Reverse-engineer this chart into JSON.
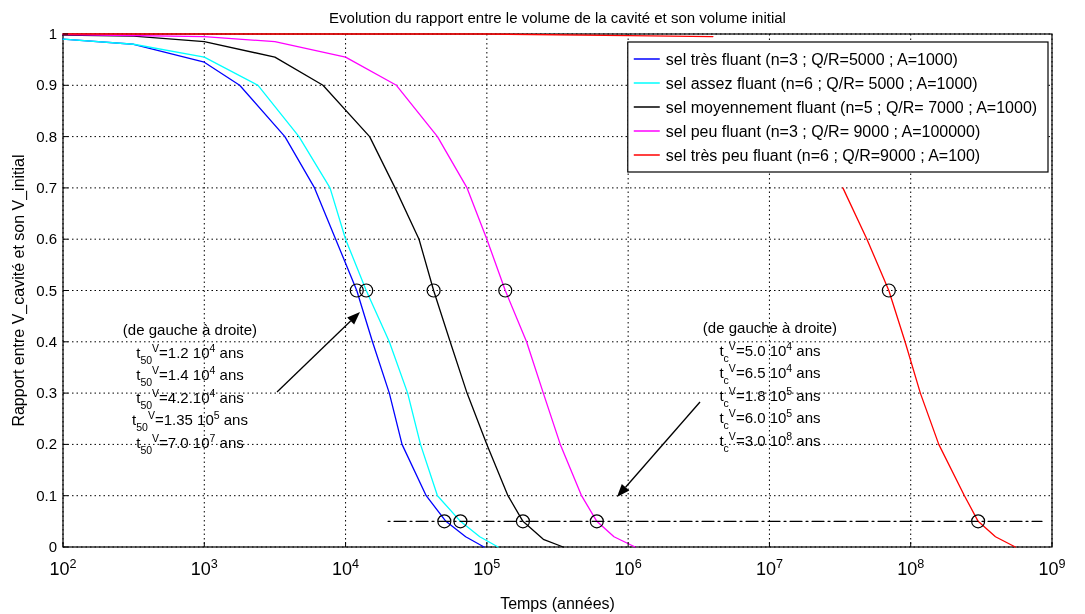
{
  "chart_data": {
    "type": "line",
    "title": "Evolution du rapport entre le volume de la cavité et son volume initial",
    "xlabel": "Temps (années)",
    "ylabel": "Rapport entre V_cavité et son V_initial",
    "log": "x",
    "xlim": [
      100,
      1000000000
    ],
    "xticks": [
      {
        "value": 100,
        "label": "10$^{2}$"
      },
      {
        "value": 1000,
        "label": "10$^{3}$"
      },
      {
        "value": 10000,
        "label": "10$^{4}$"
      },
      {
        "value": 100000,
        "label": "10$^{5}$"
      },
      {
        "value": 1000000,
        "label": "10$^{6}$"
      },
      {
        "value": 10000000,
        "label": "10$^{7}$"
      },
      {
        "value": 100000000,
        "label": "10$^{8}$"
      },
      {
        "value": 1000000000,
        "label": "10$^{9}$"
      }
    ],
    "ylim": [
      0,
      1
    ],
    "yticks": [
      0,
      0.1,
      0.2,
      0.3,
      0.4,
      0.5,
      0.6,
      0.7,
      0.8,
      0.9,
      1
    ],
    "grid": true,
    "legend": "top right",
    "series": [
      {
        "name": "sel très fluant (n=3 ; Q/R=5000 ; A=1000)",
        "color": "#0000ff",
        "x": [
          100,
          316,
          1000,
          1780,
          3720,
          6030,
          8510,
          12000,
          15500,
          20400,
          25100,
          37200,
          51300,
          70800,
          95500
        ],
        "values": [
          0.99,
          0.98,
          0.945,
          0.9,
          0.8,
          0.7,
          0.6,
          0.5,
          0.4,
          0.3,
          0.2,
          0.1,
          0.05,
          0.02,
          0
        ]
      },
      {
        "name": "sel assez fluant (n=6 ; Q/R= 5000 ; A=1000)",
        "color": "#00ffff",
        "x": [
          100,
          316,
          1000,
          2400,
          4680,
          7760,
          10000,
          14000,
          20400,
          27500,
          33900,
          44700,
          65000,
          89100,
          120000
        ],
        "values": [
          0.99,
          0.98,
          0.955,
          0.9,
          0.8,
          0.7,
          0.6,
          0.5,
          0.4,
          0.3,
          0.2,
          0.1,
          0.05,
          0.02,
          0
        ]
      },
      {
        "name": "sel moyennement fluant (n=5 ; Q/R= 7000 ; A=1000)",
        "color": "#000000",
        "x": [
          100,
          316,
          1000,
          3160,
          6920,
          14800,
          22400,
          33100,
          42000,
          55000,
          72400,
          100000,
          141000,
          180000,
          251000,
          347000
        ],
        "values": [
          0.998,
          0.996,
          0.985,
          0.955,
          0.9,
          0.8,
          0.7,
          0.6,
          0.5,
          0.4,
          0.3,
          0.2,
          0.1,
          0.05,
          0.015,
          0
        ]
      },
      {
        "name": "sel peu fluant (n=3 ; Q/R= 9000 ; A=100000)",
        "color": "#ff00ff",
        "x": [
          100,
          1000,
          3160,
          10000,
          22900,
          44700,
          72400,
          100000,
          135000,
          191000,
          251000,
          331000,
          468000,
          600000,
          794000,
          1120000
        ],
        "values": [
          0.999,
          0.995,
          0.985,
          0.955,
          0.9,
          0.8,
          0.7,
          0.6,
          0.5,
          0.4,
          0.3,
          0.2,
          0.1,
          0.05,
          0.02,
          0
        ]
      },
      {
        "name": "sel très peu fluant (n=6 ; Q/R=9000 ; A=100)",
        "color": "#ff0000",
        "x": [
          100,
          10000,
          100000,
          1000000,
          3980000,
          10000000,
          33100000,
          49000000,
          70000000,
          91200000,
          117000000,
          158000000,
          240000000,
          300000000,
          398000000,
          550000000
        ],
        "values": [
          1,
          1,
          1,
          0.997,
          0.995,
          null,
          0.7,
          0.6,
          0.5,
          0.4,
          0.3,
          0.2,
          0.1,
          0.05,
          0.02,
          0
        ]
      },
      {
        "type": "scatter",
        "marker": "circle",
        "color": "#000000",
        "x": [
          12000,
          14000,
          42000,
          135000,
          70000000,
          50000,
          65000,
          180000,
          600000,
          300000000
        ],
        "values": [
          0.5,
          0.5,
          0.5,
          0.5,
          0.5,
          0.05,
          0.05,
          0.05,
          0.05,
          0.05
        ]
      },
      {
        "type": "line",
        "line_style": "dashed",
        "color": "#000000",
        "x": [
          20000,
          850000000
        ],
        "values": [
          0.05,
          0.05
        ]
      }
    ],
    "annotations": [
      "(de gauche à droite)",
      "t$_{50}$$^{V}$=1.2 10$^{4}$ ans",
      "t$_{50}$$^{V}$=1.4 10$^{4}$ ans",
      "t$_{50}$$^{V}$=4.2.10$^{4}$ ans",
      "t$_{50}$$^{V}$=1.35 10$^{5}$ ans",
      "t$_{50}$$^{V}$=7.0 10$^{7}$ ans",
      "(de gauche à droite)",
      "t$_{c}$$^{V}$=5.0 10$^{4}$ ans",
      "t$_{c}$$^{V}$=6.5 10$^{4}$ ans",
      "t$_{c}$$^{V}$=1.8 10$^{5}$ ans",
      "t$_{c}$$^{V}$=6.0 10$^{5}$ ans",
      "t$_{c}$$^{V}$=3.0 10$^{8}$ ans"
    ]
  }
}
